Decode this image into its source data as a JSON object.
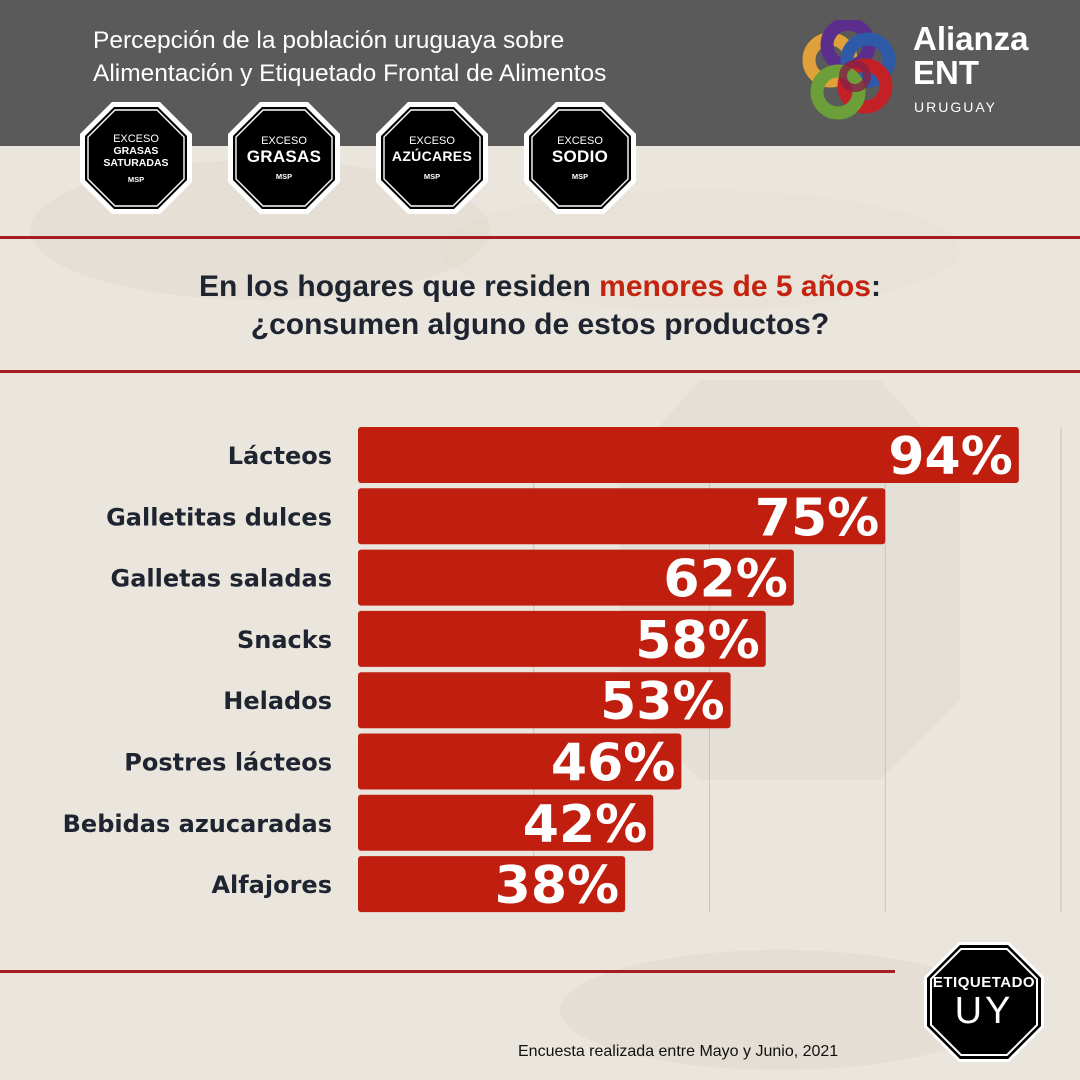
{
  "header": {
    "title_line1": "Percepción de la población uruguaya sobre",
    "title_line2": "Alimentación y Etiquetado Frontal de Alimentos",
    "seals": [
      {
        "small": "EXCESO",
        "big": "GRASAS\nSATURADAS",
        "msp": "MSP"
      },
      {
        "small": "EXCESO",
        "big": "GRASAS",
        "msp": "MSP"
      },
      {
        "small": "EXCESO",
        "big": "AZÚCARES",
        "msp": "MSP"
      },
      {
        "small": "EXCESO",
        "big": "SODIO",
        "msp": "MSP"
      }
    ],
    "logo_name_line1": "Alianza",
    "logo_name_line2": "ENT",
    "logo_sub": "URUGUAY",
    "logo_colors": [
      "#e0a13a",
      "#5b2d8c",
      "#2e5aa7",
      "#c42127",
      "#6c9f3a",
      "#8a1f46"
    ]
  },
  "question": {
    "part1": "En los hogares que residen ",
    "highlight": "menores de 5 años",
    "part2": ":",
    "line2": "¿consumen alguno de estos productos?"
  },
  "chart_data": {
    "type": "bar",
    "orientation": "horizontal",
    "categories": [
      "Lácteos",
      "Galletitas dulces",
      "Galletas saladas",
      "Snacks",
      "Helados",
      "Postres lácteos",
      "Bebidas azucaradas",
      "Alfajores"
    ],
    "values": [
      94,
      75,
      62,
      58,
      53,
      46,
      42,
      38
    ],
    "value_labels": [
      "94%",
      "75%",
      "62%",
      "58%",
      "53%",
      "46%",
      "42%",
      "38%"
    ],
    "xlim": [
      0,
      100
    ],
    "grid": true,
    "bar_color": "#c01e0e"
  },
  "footer": {
    "note": "Encuesta realizada entre Mayo y Junio, 2021",
    "seal_top": "ETIQUETADO",
    "seal_bottom": "UY"
  },
  "colors": {
    "header_bg": "#5a5a5a",
    "divider": "#a51d22",
    "highlight": "#c4240f",
    "text_dark": "#1e2430"
  }
}
